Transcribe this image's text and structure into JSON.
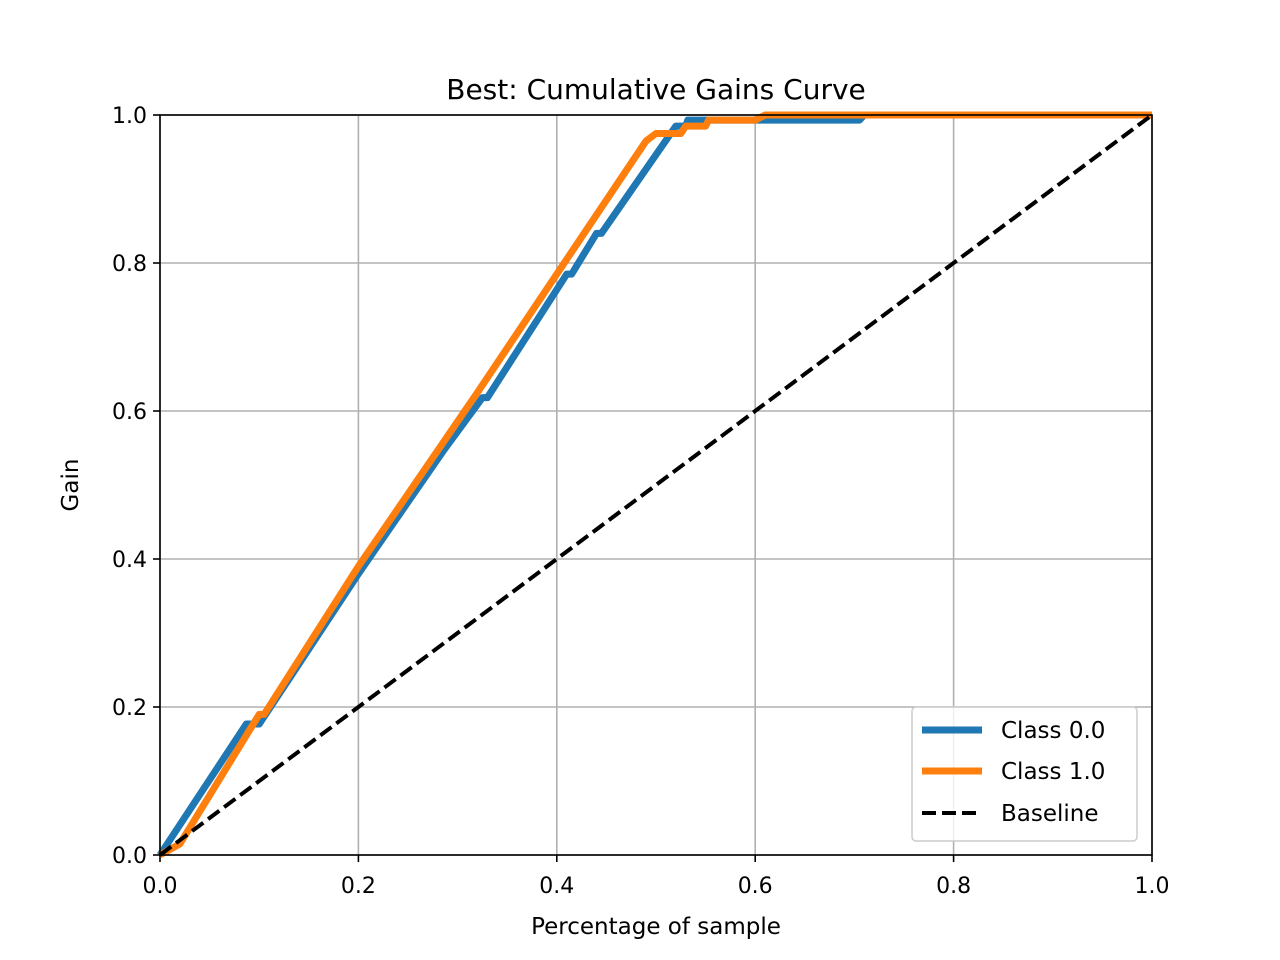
{
  "chart_data": {
    "type": "line",
    "title": "Best: Cumulative Gains Curve",
    "xlabel": "Percentage of sample",
    "ylabel": "Gain",
    "xlim": [
      0.0,
      1.0
    ],
    "ylim": [
      0.0,
      1.0
    ],
    "xticks": [
      0.0,
      0.2,
      0.4,
      0.6,
      0.8,
      1.0
    ],
    "yticks": [
      0.0,
      0.2,
      0.4,
      0.6,
      0.8,
      1.0
    ],
    "xtick_labels": [
      "0.0",
      "0.2",
      "0.4",
      "0.6",
      "0.8",
      "1.0"
    ],
    "ytick_labels": [
      "0.0",
      "0.2",
      "0.4",
      "0.6",
      "0.8",
      "1.0"
    ],
    "grid": true,
    "legend_position": "lower-right",
    "series": [
      {
        "name": "Class 0.0",
        "color": "#1f77b4",
        "style": "solid",
        "points": [
          [
            0.0,
            0.0
          ],
          [
            0.087,
            0.177
          ],
          [
            0.1,
            0.177
          ],
          [
            0.14,
            0.258
          ],
          [
            0.2,
            0.38
          ],
          [
            0.285,
            0.545
          ],
          [
            0.325,
            0.618
          ],
          [
            0.33,
            0.618
          ],
          [
            0.41,
            0.785
          ],
          [
            0.415,
            0.785
          ],
          [
            0.44,
            0.84
          ],
          [
            0.445,
            0.84
          ],
          [
            0.52,
            0.985
          ],
          [
            0.53,
            0.985
          ],
          [
            0.532,
            0.993
          ],
          [
            0.705,
            0.993
          ],
          [
            0.71,
            1.0
          ],
          [
            1.0,
            1.0
          ]
        ]
      },
      {
        "name": "Class 1.0",
        "color": "#ff7f0e",
        "style": "solid",
        "points": [
          [
            0.0,
            0.0
          ],
          [
            0.02,
            0.015
          ],
          [
            0.1,
            0.19
          ],
          [
            0.105,
            0.19
          ],
          [
            0.2,
            0.39
          ],
          [
            0.32,
            0.625
          ],
          [
            0.49,
            0.965
          ],
          [
            0.5,
            0.975
          ],
          [
            0.525,
            0.975
          ],
          [
            0.53,
            0.985
          ],
          [
            0.55,
            0.985
          ],
          [
            0.553,
            0.993
          ],
          [
            0.6,
            0.993
          ],
          [
            0.61,
            1.0
          ],
          [
            1.0,
            1.0
          ]
        ]
      },
      {
        "name": "Baseline",
        "color": "#000000",
        "style": "dashed",
        "points": [
          [
            0.0,
            0.0
          ],
          [
            1.0,
            1.0
          ]
        ]
      }
    ]
  }
}
